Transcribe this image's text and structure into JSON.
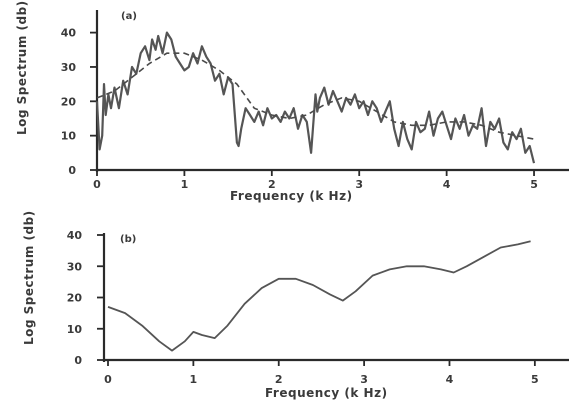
{
  "chart_data": [
    {
      "type": "line",
      "panel_label": "(a)",
      "xlabel": "Frequency  (k Hz)",
      "ylabel": "Log Spectrum (db)",
      "xlim": [
        0,
        5.4
      ],
      "ylim": [
        0,
        46
      ],
      "xticks": [
        0,
        1,
        2,
        3,
        4,
        5
      ],
      "yticks": [
        0,
        10,
        20,
        30,
        40
      ],
      "grid": false,
      "series": [
        {
          "style": "solid",
          "x": [
            0.0,
            0.03,
            0.06,
            0.08,
            0.1,
            0.13,
            0.16,
            0.2,
            0.25,
            0.3,
            0.35,
            0.4,
            0.45,
            0.5,
            0.55,
            0.6,
            0.63,
            0.67,
            0.7,
            0.75,
            0.8,
            0.85,
            0.9,
            0.95,
            1.0,
            1.05,
            1.1,
            1.15,
            1.2,
            1.25,
            1.3,
            1.35,
            1.4,
            1.45,
            1.5,
            1.55,
            1.6,
            1.62,
            1.65,
            1.7,
            1.75,
            1.8,
            1.85,
            1.9,
            1.95,
            2.0,
            2.05,
            2.1,
            2.15,
            2.2,
            2.25,
            2.3,
            2.35,
            2.4,
            2.45,
            2.5,
            2.52,
            2.55,
            2.6,
            2.65,
            2.7,
            2.75,
            2.8,
            2.85,
            2.9,
            2.95,
            3.0,
            3.05,
            3.1,
            3.15,
            3.2,
            3.25,
            3.3,
            3.35,
            3.4,
            3.45,
            3.5,
            3.55,
            3.6,
            3.65,
            3.7,
            3.75,
            3.8,
            3.85,
            3.9,
            3.95,
            4.0,
            4.05,
            4.1,
            4.15,
            4.2,
            4.25,
            4.3,
            4.35,
            4.4,
            4.45,
            4.5,
            4.55,
            4.6,
            4.65,
            4.7,
            4.75,
            4.8,
            4.85,
            4.9,
            4.95,
            5.0
          ],
          "y": [
            20,
            6,
            10,
            25,
            16,
            22,
            18,
            24,
            18,
            26,
            22,
            30,
            28,
            34,
            36,
            32,
            38,
            35,
            39,
            34,
            40,
            38,
            33,
            31,
            29,
            30,
            34,
            31,
            36,
            33,
            31,
            26,
            28,
            22,
            27,
            25,
            8,
            7,
            12,
            18,
            16,
            14,
            17,
            13,
            18,
            15,
            16,
            14,
            17,
            15,
            18,
            12,
            16,
            14,
            5,
            22,
            17,
            21,
            24,
            19,
            23,
            20,
            17,
            21,
            19,
            22,
            18,
            20,
            16,
            20,
            18,
            14,
            17,
            20,
            12,
            7,
            14,
            9,
            6,
            14,
            11,
            12,
            17,
            10,
            15,
            17,
            13,
            9,
            15,
            12,
            16,
            10,
            13,
            12,
            18,
            7,
            14,
            12,
            15,
            8,
            6,
            11,
            9,
            12,
            5,
            7,
            2
          ]
        },
        {
          "style": "dashed",
          "x": [
            0.0,
            0.2,
            0.4,
            0.6,
            0.8,
            1.0,
            1.2,
            1.4,
            1.6,
            1.8,
            2.0,
            2.2,
            2.4,
            2.6,
            2.8,
            3.0,
            3.2,
            3.4,
            3.6,
            3.8,
            4.0,
            4.2,
            4.4,
            4.6,
            4.8,
            5.0
          ],
          "y": [
            21,
            23,
            27,
            31,
            34,
            34,
            32,
            29,
            25,
            18,
            16,
            15,
            16,
            19,
            21,
            20,
            17,
            14,
            13,
            13,
            14,
            14,
            13,
            11,
            10,
            9
          ]
        }
      ]
    },
    {
      "type": "line",
      "panel_label": "(b)",
      "xlabel": "Frequency   (k Hz)",
      "ylabel": "Log Spectrum (db)",
      "xlim": [
        0,
        5.4
      ],
      "ylim": [
        0,
        40
      ],
      "xticks": [
        0,
        1,
        2,
        3,
        4,
        5
      ],
      "yticks": [
        0,
        10,
        20,
        30,
        40
      ],
      "grid": false,
      "series": [
        {
          "style": "solid",
          "x": [
            0.0,
            0.2,
            0.4,
            0.6,
            0.75,
            0.9,
            1.0,
            1.1,
            1.25,
            1.4,
            1.6,
            1.8,
            2.0,
            2.2,
            2.4,
            2.6,
            2.75,
            2.9,
            3.1,
            3.3,
            3.5,
            3.7,
            3.9,
            4.05,
            4.2,
            4.4,
            4.6,
            4.8,
            4.95
          ],
          "y": [
            17,
            15,
            11,
            6,
            3,
            6,
            9,
            8,
            7,
            11,
            18,
            23,
            26,
            26,
            24,
            21,
            19,
            22,
            27,
            29,
            30,
            30,
            29,
            28,
            30,
            33,
            36,
            37,
            38
          ]
        }
      ]
    }
  ],
  "labels": {
    "a_panel": "(a)",
    "a_xlabel": "Frequency    (k Hz)",
    "a_ylabel": "Log Spectrum (db)",
    "b_panel": "(b)",
    "b_xlabel": "Frequency   (k Hz)",
    "b_ylabel": "Log Spectrum (db)"
  }
}
